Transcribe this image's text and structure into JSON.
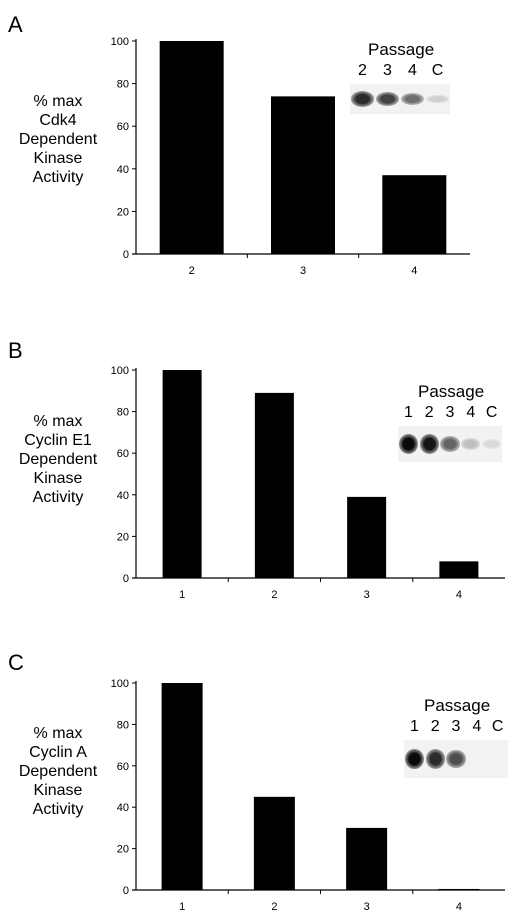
{
  "chart_data": [
    {
      "type": "bar",
      "panel_label": "A",
      "ylabel_lines": [
        "% max",
        "Cdk4",
        "Dependent",
        "Kinase",
        "Activity"
      ],
      "categories": [
        "2",
        "3",
        "4"
      ],
      "values": [
        100,
        74,
        37
      ],
      "ylim": [
        0,
        100
      ],
      "yticks": [
        0,
        20,
        40,
        60,
        80,
        100
      ],
      "grid": false,
      "inset": {
        "title": "Passage",
        "lanes": [
          "2",
          "3",
          "4",
          "C"
        ],
        "intensities": [
          0.85,
          0.75,
          0.55,
          0.12
        ]
      }
    },
    {
      "type": "bar",
      "panel_label": "B",
      "ylabel_lines": [
        "% max",
        "Cyclin E1",
        "Dependent",
        "Kinase",
        "Activity"
      ],
      "categories": [
        "1",
        "2",
        "3",
        "4"
      ],
      "values": [
        100,
        89,
        39,
        8
      ],
      "ylim": [
        0,
        100
      ],
      "yticks": [
        0,
        20,
        40,
        60,
        80,
        100
      ],
      "grid": false,
      "inset": {
        "title": "Passage",
        "lanes": [
          "1",
          "2",
          "3",
          "4",
          "C"
        ],
        "intensities": [
          1.0,
          0.95,
          0.6,
          0.2,
          0.08
        ]
      }
    },
    {
      "type": "bar",
      "panel_label": "C",
      "ylabel_lines": [
        "% max",
        "Cyclin A",
        "Dependent",
        "Kinase",
        "Activity"
      ],
      "categories": [
        "1",
        "2",
        "3",
        "4"
      ],
      "values": [
        100,
        45,
        30,
        0.5
      ],
      "ylim": [
        0,
        100
      ],
      "yticks": [
        0,
        20,
        40,
        60,
        80,
        100
      ],
      "grid": false,
      "inset": {
        "title": "Passage",
        "lanes": [
          "1",
          "2",
          "3",
          "4",
          "C"
        ],
        "intensities": [
          1.0,
          0.85,
          0.7,
          0.0,
          0.0
        ]
      }
    }
  ]
}
